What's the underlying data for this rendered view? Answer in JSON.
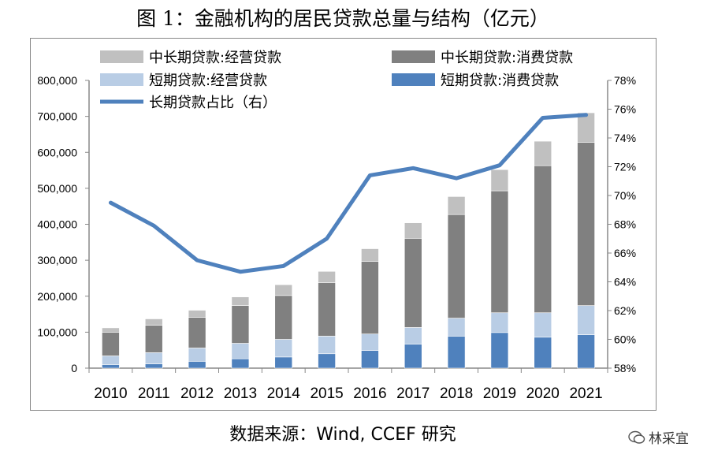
{
  "title": "图 1：金融机构的居民贷款总量与结构（亿元）",
  "source": "数据来源：Wind, CCEF 研究",
  "watermark": "林采宜",
  "chart_data": {
    "type": "bar",
    "stacked": true,
    "categories": [
      "2010",
      "2011",
      "2012",
      "2013",
      "2014",
      "2015",
      "2016",
      "2017",
      "2018",
      "2019",
      "2020",
      "2021"
    ],
    "series": [
      {
        "name": "短期贷款:消费贷款",
        "axis": "left",
        "color": "#4f81bd",
        "values": [
          10000,
          12000,
          19000,
          26000,
          31000,
          40000,
          49000,
          67000,
          89000,
          99000,
          86000,
          93000
        ]
      },
      {
        "name": "短期贷款:经营贷款",
        "axis": "left",
        "color": "#b9cde5",
        "values": [
          24000,
          31000,
          37000,
          43000,
          49000,
          49000,
          46000,
          46000,
          50000,
          55000,
          68000,
          81000
        ]
      },
      {
        "name": "中长期贷款:消费贷款",
        "axis": "left",
        "color": "#808080",
        "values": [
          66000,
          76000,
          85000,
          105000,
          122000,
          149000,
          202000,
          248000,
          288000,
          339000,
          409000,
          454000
        ]
      },
      {
        "name": "中长期贷款:经营贷款",
        "axis": "left",
        "color": "#c0c0c0",
        "values": [
          12000,
          18000,
          20000,
          24000,
          30000,
          31000,
          35000,
          43000,
          50000,
          59000,
          68000,
          82000
        ]
      },
      {
        "name": "长期贷款占比（右）",
        "type": "line",
        "axis": "right",
        "color": "#4f81bd",
        "values": [
          69.5,
          67.9,
          65.5,
          64.7,
          65.1,
          67.0,
          71.4,
          71.9,
          71.2,
          72.1,
          75.4,
          75.6
        ]
      }
    ],
    "legend_order": [
      3,
      2,
      1,
      0,
      4
    ],
    "y_left": {
      "min": 0,
      "max": 800000,
      "ticks": [
        "0",
        "100,000",
        "200,000",
        "300,000",
        "400,000",
        "500,000",
        "600,000",
        "700,000",
        "800,000"
      ]
    },
    "y_right": {
      "min": 58,
      "max": 78,
      "ticks": [
        "58%",
        "60%",
        "62%",
        "64%",
        "66%",
        "68%",
        "70%",
        "72%",
        "74%",
        "76%",
        "78%"
      ]
    },
    "grid": false,
    "legend_position": "top"
  }
}
